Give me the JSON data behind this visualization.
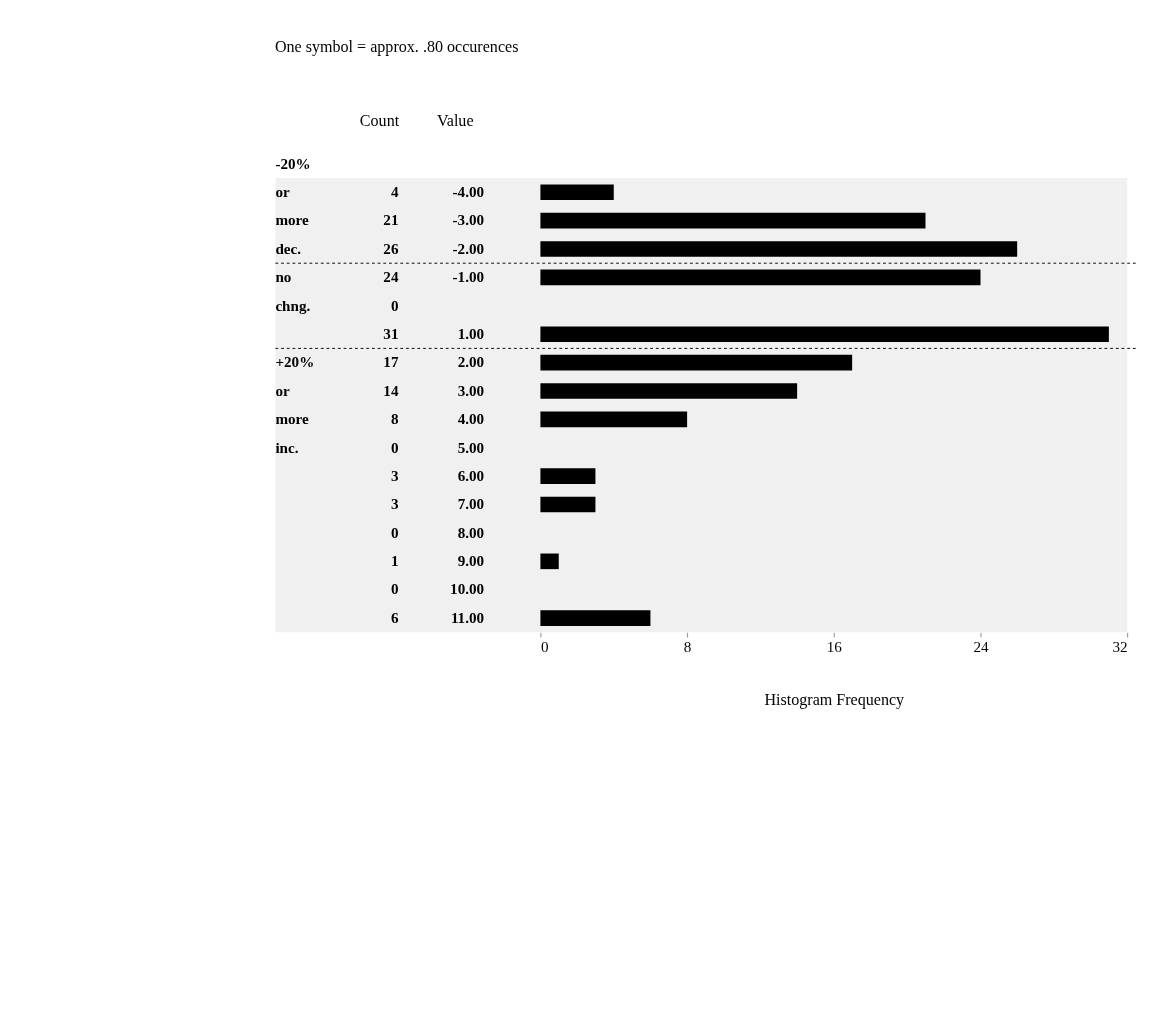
{
  "chart_data": {
    "type": "bar",
    "orientation": "horizontal",
    "title": "One symbol = approx. .80 occurences",
    "xlabel": "Histogram Frequency",
    "categories": [
      "-4.00",
      "-3.00",
      "-2.00",
      "-1.00",
      null,
      "1.00",
      "2.00",
      "3.00",
      "4.00",
      "5.00",
      "6.00",
      "7.00",
      "8.00",
      "9.00",
      "10.00",
      "11.00"
    ],
    "values": [
      4,
      21,
      26,
      24,
      0,
      31,
      17,
      14,
      8,
      0,
      3,
      3,
      0,
      1,
      0,
      6
    ],
    "color": "#000000",
    "xlim": [
      0,
      32
    ],
    "xticks": [
      0,
      8,
      16,
      24,
      32
    ],
    "data_labels": true,
    "grid": false,
    "bands": [
      {
        "axis": "y",
        "from": "-4.00",
        "to": "-2.00",
        "label": "-20% or more dec.",
        "color": "#f0f0f0"
      },
      {
        "axis": "y",
        "from": "-1.00",
        "to": "1.00",
        "label": "no chng.",
        "color": "#f0f0f0"
      },
      {
        "axis": "y",
        "from": "2.00",
        "to": "11.00",
        "label": "+20% or more inc.",
        "color": "#f0f0f0"
      }
    ],
    "annotations": [
      "Count",
      "Value"
    ]
  }
}
